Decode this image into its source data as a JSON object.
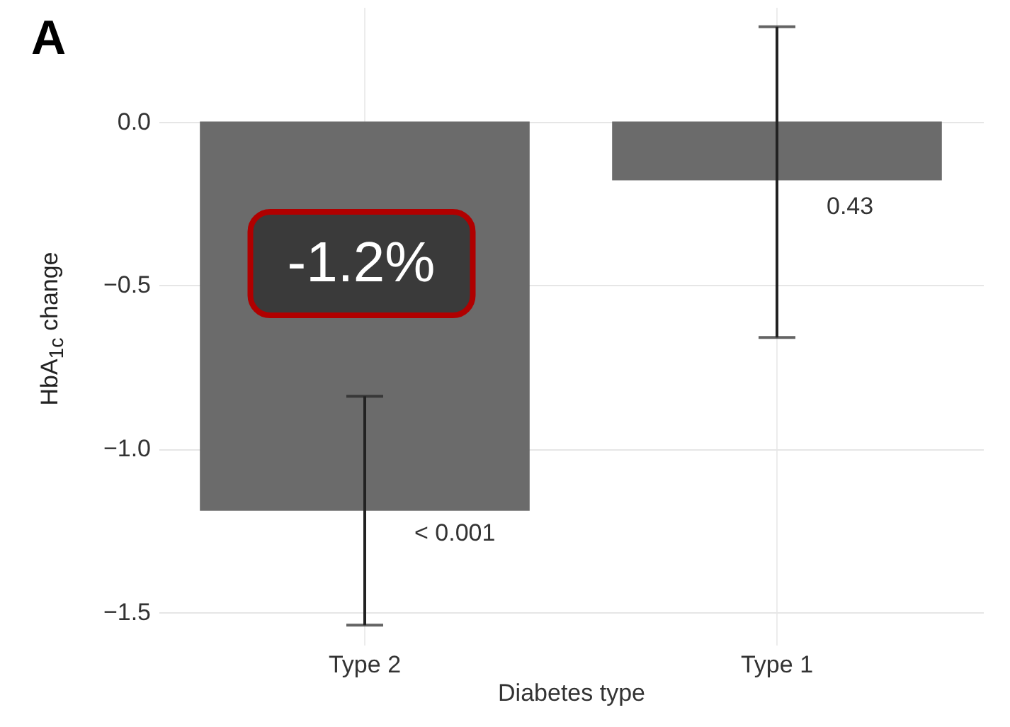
{
  "chart_data": {
    "type": "bar",
    "title": "A",
    "xlabel": "Diabetes type",
    "ylabel": "HbA$_{1c}$ change",
    "categories": [
      "Type 2",
      "Type 1"
    ],
    "values": [
      -1.19,
      -0.18
    ],
    "errors": [
      [
        -1.54,
        -0.84
      ],
      [
        -0.66,
        0.29
      ]
    ],
    "color": "#6b6b6b",
    "ylim": [
      -1.6,
      0.35
    ],
    "yticks": [
      {
        "value": -1.5,
        "label": "−1.5"
      },
      {
        "value": -1,
        "label": "−1.0"
      },
      {
        "value": -0.5,
        "label": "−0.5"
      },
      {
        "value": 0,
        "label": "0.0"
      }
    ],
    "grid": true,
    "annotations": [
      "-1.2%",
      {
        "text": "< 0.001",
        "x": "Type 2",
        "y": -1.26
      },
      {
        "text": "0.43",
        "x": "Type 1",
        "y": -0.26
      }
    ]
  }
}
